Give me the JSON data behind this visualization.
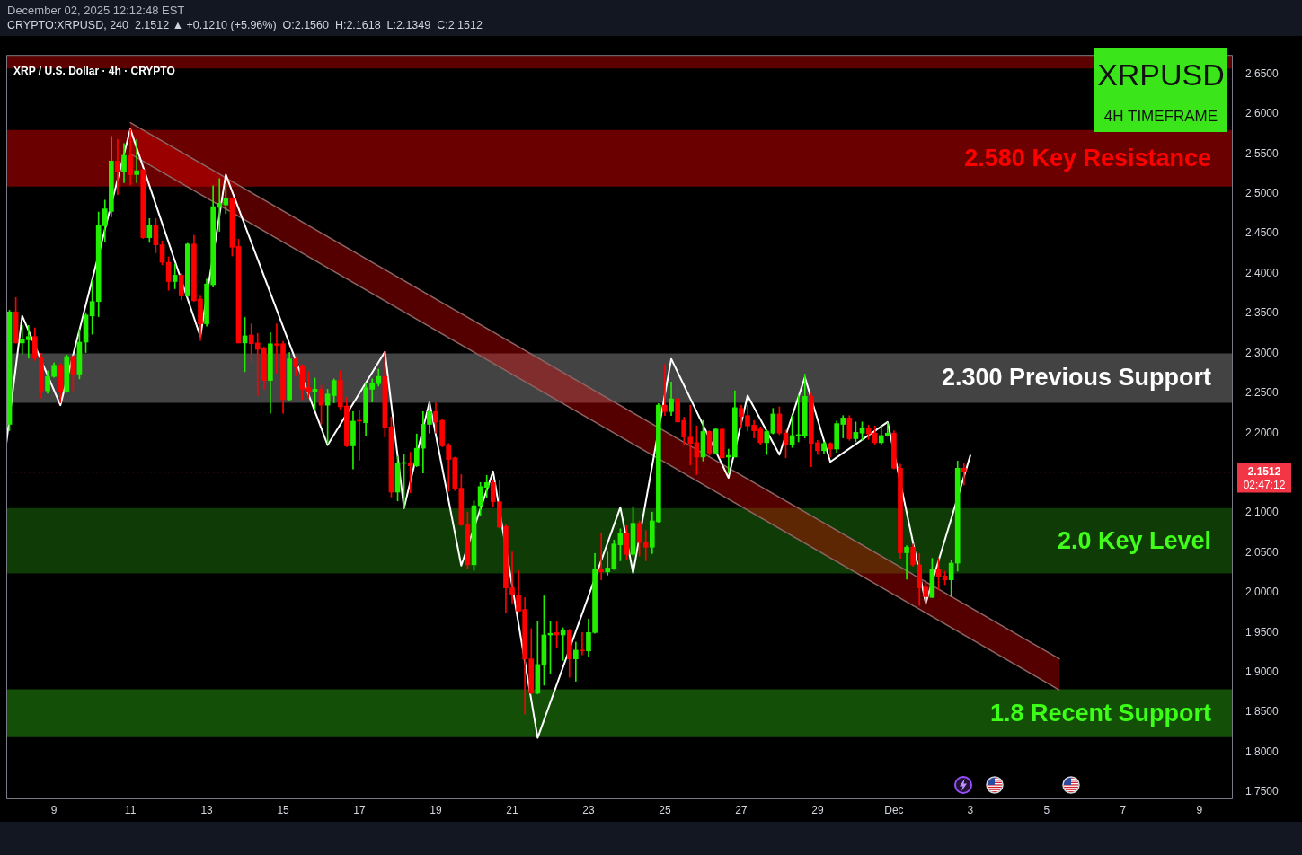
{
  "chart_data": {
    "type": "candlestick",
    "title": "XRP / U.S. Dollar · 4h · CRYPTO",
    "annotations": [
      "December 02, 2025 12:12:48 EST",
      "CRYPTO:XRPUSD, 240  2.1512 ▲ +0.1210 (+5.96%)  O:2.1560  H:2.1618  L:2.1349  C:2.1512",
      "XRPUSD",
      "4H TIMEFRAME",
      "02:47:12"
    ],
    "x": [
      "2025-11-07T20:00",
      "2025-11-08T00:00",
      "2025-11-08T04:00",
      "2025-11-08T08:00",
      "2025-11-08T12:00",
      "2025-11-08T16:00",
      "2025-11-08T20:00",
      "2025-11-09T00:00",
      "2025-11-09T04:00",
      "2025-11-09T08:00",
      "2025-11-09T12:00",
      "2025-11-09T16:00",
      "2025-11-09T20:00",
      "2025-11-10T00:00",
      "2025-11-10T04:00",
      "2025-11-10T08:00",
      "2025-11-10T12:00",
      "2025-11-10T16:00",
      "2025-11-10T20:00",
      "2025-11-11T00:00",
      "2025-11-11T04:00",
      "2025-11-11T08:00",
      "2025-11-11T12:00",
      "2025-11-11T16:00",
      "2025-11-11T20:00",
      "2025-11-12T00:00",
      "2025-11-12T04:00",
      "2025-11-12T08:00",
      "2025-11-12T12:00",
      "2025-11-12T16:00",
      "2025-11-12T20:00",
      "2025-11-13T00:00",
      "2025-11-13T04:00",
      "2025-11-13T08:00",
      "2025-11-13T12:00",
      "2025-11-13T16:00",
      "2025-11-13T20:00",
      "2025-11-14T00:00",
      "2025-11-14T04:00",
      "2025-11-14T08:00",
      "2025-11-14T12:00",
      "2025-11-14T16:00",
      "2025-11-14T20:00",
      "2025-11-15T00:00",
      "2025-11-15T04:00",
      "2025-11-15T08:00",
      "2025-11-15T12:00",
      "2025-11-15T16:00",
      "2025-11-15T20:00",
      "2025-11-16T00:00",
      "2025-11-16T04:00",
      "2025-11-16T08:00",
      "2025-11-16T12:00",
      "2025-11-16T16:00",
      "2025-11-16T20:00",
      "2025-11-17T00:00",
      "2025-11-17T04:00",
      "2025-11-17T08:00",
      "2025-11-17T12:00",
      "2025-11-17T16:00",
      "2025-11-17T20:00",
      "2025-11-18T00:00",
      "2025-11-18T04:00",
      "2025-11-18T08:00",
      "2025-11-18T12:00",
      "2025-11-18T16:00",
      "2025-11-18T20:00",
      "2025-11-19T00:00",
      "2025-11-19T04:00",
      "2025-11-19T08:00",
      "2025-11-19T12:00",
      "2025-11-19T16:00",
      "2025-11-19T20:00",
      "2025-11-20T00:00",
      "2025-11-20T04:00",
      "2025-11-20T08:00",
      "2025-11-20T12:00",
      "2025-11-20T16:00",
      "2025-11-20T20:00",
      "2025-11-21T00:00",
      "2025-11-21T04:00",
      "2025-11-21T08:00",
      "2025-11-21T12:00",
      "2025-11-21T16:00",
      "2025-11-21T20:00",
      "2025-11-22T00:00",
      "2025-11-22T04:00",
      "2025-11-22T08:00",
      "2025-11-22T12:00",
      "2025-11-22T16:00",
      "2025-11-22T20:00",
      "2025-11-23T00:00",
      "2025-11-23T04:00",
      "2025-11-23T08:00",
      "2025-11-23T12:00",
      "2025-11-23T16:00",
      "2025-11-23T20:00",
      "2025-11-24T00:00",
      "2025-11-24T04:00",
      "2025-11-24T08:00",
      "2025-11-24T12:00",
      "2025-11-24T16:00",
      "2025-11-24T20:00",
      "2025-11-25T00:00",
      "2025-11-25T04:00",
      "2025-11-25T08:00",
      "2025-11-25T12:00",
      "2025-11-25T16:00",
      "2025-11-25T20:00",
      "2025-11-26T00:00",
      "2025-11-26T04:00",
      "2025-11-26T08:00",
      "2025-11-26T12:00",
      "2025-11-26T16:00",
      "2025-11-26T20:00",
      "2025-11-27T00:00",
      "2025-11-27T04:00",
      "2025-11-27T08:00",
      "2025-11-27T12:00",
      "2025-11-27T16:00",
      "2025-11-27T20:00",
      "2025-11-28T00:00",
      "2025-11-28T04:00",
      "2025-11-28T08:00",
      "2025-11-28T12:00",
      "2025-11-28T16:00",
      "2025-11-28T20:00",
      "2025-11-29T00:00",
      "2025-11-29T04:00",
      "2025-11-29T08:00",
      "2025-11-29T12:00",
      "2025-11-29T16:00",
      "2025-11-29T20:00",
      "2025-11-30T00:00",
      "2025-11-30T04:00",
      "2025-11-30T08:00",
      "2025-11-30T12:00",
      "2025-11-30T16:00",
      "2025-11-30T20:00",
      "2025-12-01T00:00",
      "2025-12-01T04:00",
      "2025-12-01T08:00",
      "2025-12-01T12:00",
      "2025-12-01T16:00",
      "2025-12-01T20:00",
      "2025-12-02T00:00",
      "2025-12-02T04:00",
      "2025-12-02T08:00",
      "2025-12-02T12:00",
      "2025-12-02T16:00",
      "2025-12-02T20:00"
    ],
    "ohlc": [
      [
        2.211,
        2.354,
        2.203,
        2.352
      ],
      [
        2.352,
        2.37,
        2.313,
        2.313
      ],
      [
        2.313,
        2.335,
        2.299,
        2.318
      ],
      [
        2.317,
        2.335,
        2.294,
        2.321
      ],
      [
        2.321,
        2.332,
        2.291,
        2.294
      ],
      [
        2.294,
        2.3,
        2.244,
        2.253
      ],
      [
        2.253,
        2.278,
        2.25,
        2.271
      ],
      [
        2.271,
        2.288,
        2.27,
        2.285
      ],
      [
        2.285,
        2.287,
        2.238,
        2.252
      ],
      [
        2.252,
        2.298,
        2.251,
        2.296
      ],
      [
        2.296,
        2.297,
        2.253,
        2.274
      ],
      [
        2.274,
        2.33,
        2.268,
        2.314
      ],
      [
        2.314,
        2.351,
        2.301,
        2.348
      ],
      [
        2.347,
        2.392,
        2.324,
        2.365
      ],
      [
        2.365,
        2.477,
        2.346,
        2.461
      ],
      [
        2.46,
        2.492,
        2.44,
        2.481
      ],
      [
        2.478,
        2.572,
        2.471,
        2.541
      ],
      [
        2.541,
        2.568,
        2.499,
        2.528
      ],
      [
        2.528,
        2.563,
        2.514,
        2.548
      ],
      [
        2.548,
        2.581,
        2.511,
        2.524
      ],
      [
        2.524,
        2.568,
        2.514,
        2.529
      ],
      [
        2.53,
        2.531,
        2.444,
        2.445
      ],
      [
        2.445,
        2.469,
        2.439,
        2.46
      ],
      [
        2.46,
        2.469,
        2.426,
        2.436
      ],
      [
        2.436,
        2.441,
        2.411,
        2.414
      ],
      [
        2.414,
        2.421,
        2.379,
        2.39
      ],
      [
        2.39,
        2.412,
        2.381,
        2.398
      ],
      [
        2.398,
        2.4,
        2.367,
        2.372
      ],
      [
        2.372,
        2.438,
        2.371,
        2.437
      ],
      [
        2.437,
        2.448,
        2.365,
        2.366
      ],
      [
        2.368,
        2.372,
        2.316,
        2.337
      ],
      [
        2.337,
        2.393,
        2.334,
        2.387
      ],
      [
        2.386,
        2.51,
        2.383,
        2.484
      ],
      [
        2.483,
        2.519,
        2.453,
        2.488
      ],
      [
        2.486,
        2.512,
        2.475,
        2.494
      ],
      [
        2.494,
        2.495,
        2.422,
        2.433
      ],
      [
        2.434,
        2.443,
        2.313,
        2.313
      ],
      [
        2.313,
        2.345,
        2.277,
        2.322
      ],
      [
        2.323,
        2.337,
        2.29,
        2.312
      ],
      [
        2.313,
        2.325,
        2.247,
        2.305
      ],
      [
        2.306,
        2.308,
        2.255,
        2.266
      ],
      [
        2.266,
        2.326,
        2.225,
        2.312
      ],
      [
        2.312,
        2.337,
        2.275,
        2.31
      ],
      [
        2.312,
        2.315,
        2.225,
        2.242
      ],
      [
        2.242,
        2.301,
        2.241,
        2.293
      ],
      [
        2.293,
        2.294,
        2.272,
        2.283
      ],
      [
        2.284,
        2.286,
        2.242,
        2.255
      ],
      [
        2.257,
        2.277,
        2.244,
        2.252
      ],
      [
        2.252,
        2.269,
        2.229,
        2.255
      ],
      [
        2.255,
        2.26,
        2.211,
        2.235
      ],
      [
        2.235,
        2.255,
        2.187,
        2.249
      ],
      [
        2.247,
        2.268,
        2.238,
        2.266
      ],
      [
        2.266,
        2.278,
        2.23,
        2.233
      ],
      [
        2.234,
        2.245,
        2.183,
        2.184
      ],
      [
        2.184,
        2.227,
        2.155,
        2.215
      ],
      [
        2.216,
        2.229,
        2.166,
        2.215
      ],
      [
        2.213,
        2.262,
        2.197,
        2.257
      ],
      [
        2.255,
        2.268,
        2.239,
        2.263
      ],
      [
        2.262,
        2.28,
        2.259,
        2.271
      ],
      [
        2.271,
        2.302,
        2.195,
        2.207
      ],
      [
        2.208,
        2.22,
        2.12,
        2.126
      ],
      [
        2.126,
        2.171,
        2.115,
        2.162
      ],
      [
        2.162,
        2.174,
        2.106,
        2.163
      ],
      [
        2.162,
        2.176,
        2.125,
        2.159
      ],
      [
        2.159,
        2.199,
        2.158,
        2.181
      ],
      [
        2.181,
        2.227,
        2.15,
        2.211
      ],
      [
        2.211,
        2.239,
        2.2,
        2.227
      ],
      [
        2.227,
        2.238,
        2.2,
        2.214
      ],
      [
        2.216,
        2.218,
        2.183,
        2.184
      ],
      [
        2.185,
        2.187,
        2.127,
        2.167
      ],
      [
        2.169,
        2.17,
        2.128,
        2.13
      ],
      [
        2.131,
        2.148,
        2.084,
        2.085
      ],
      [
        2.085,
        2.101,
        2.03,
        2.035
      ],
      [
        2.035,
        2.115,
        2.028,
        2.109
      ],
      [
        2.109,
        2.138,
        2.096,
        2.133
      ],
      [
        2.132,
        2.147,
        2.119,
        2.138
      ],
      [
        2.138,
        2.141,
        2.107,
        2.114
      ],
      [
        2.114,
        2.141,
        2.081,
        2.082
      ],
      [
        2.083,
        2.085,
        1.975,
        2.006
      ],
      [
        2.006,
        2.051,
        1.987,
        1.998
      ],
      [
        1.997,
        2.028,
        1.976,
        1.977
      ],
      [
        1.979,
        1.994,
        1.848,
        1.917
      ],
      [
        1.917,
        1.955,
        1.873,
        1.874
      ],
      [
        1.874,
        1.964,
        1.873,
        1.91
      ],
      [
        1.909,
        1.996,
        1.884,
        1.947
      ],
      [
        1.947,
        1.964,
        1.899,
        1.949
      ],
      [
        1.95,
        1.964,
        1.931,
        1.947
      ],
      [
        1.947,
        1.956,
        1.915,
        1.953
      ],
      [
        1.953,
        1.954,
        1.894,
        1.917
      ],
      [
        1.917,
        1.938,
        1.889,
        1.928
      ],
      [
        1.928,
        1.95,
        1.922,
        1.927
      ],
      [
        1.927,
        1.967,
        1.92,
        1.95
      ],
      [
        1.95,
        2.049,
        1.949,
        2.03
      ],
      [
        2.03,
        2.074,
        2.016,
        2.026
      ],
      [
        2.026,
        2.051,
        2.022,
        2.031
      ],
      [
        2.03,
        2.066,
        2.029,
        2.061
      ],
      [
        2.06,
        2.08,
        2.04,
        2.075
      ],
      [
        2.074,
        2.084,
        2.042,
        2.048
      ],
      [
        2.048,
        2.108,
        2.046,
        2.087
      ],
      [
        2.087,
        2.09,
        2.046,
        2.063
      ],
      [
        2.063,
        2.078,
        2.04,
        2.057
      ],
      [
        2.057,
        2.101,
        2.049,
        2.09
      ],
      [
        2.089,
        2.237,
        2.088,
        2.235
      ],
      [
        2.235,
        2.286,
        2.222,
        2.227
      ],
      [
        2.227,
        2.264,
        2.222,
        2.243
      ],
      [
        2.243,
        2.257,
        2.214,
        2.214
      ],
      [
        2.216,
        2.22,
        2.185,
        2.195
      ],
      [
        2.195,
        2.235,
        2.16,
        2.187
      ],
      [
        2.188,
        2.209,
        2.148,
        2.17
      ],
      [
        2.17,
        2.216,
        2.165,
        2.202
      ],
      [
        2.202,
        2.203,
        2.172,
        2.175
      ],
      [
        2.175,
        2.206,
        2.174,
        2.205
      ],
      [
        2.205,
        2.206,
        2.169,
        2.169
      ],
      [
        2.17,
        2.18,
        2.15,
        2.172
      ],
      [
        2.17,
        2.253,
        2.17,
        2.232
      ],
      [
        2.231,
        2.235,
        2.207,
        2.221
      ],
      [
        2.222,
        2.235,
        2.203,
        2.209
      ],
      [
        2.21,
        2.216,
        2.194,
        2.203
      ],
      [
        2.205,
        2.208,
        2.185,
        2.188
      ],
      [
        2.188,
        2.204,
        2.173,
        2.202
      ],
      [
        2.2,
        2.231,
        2.199,
        2.224
      ],
      [
        2.224,
        2.233,
        2.198,
        2.2
      ],
      [
        2.2,
        2.204,
        2.169,
        2.185
      ],
      [
        2.185,
        2.222,
        2.182,
        2.197
      ],
      [
        2.197,
        2.247,
        2.189,
        2.198
      ],
      [
        2.196,
        2.274,
        2.194,
        2.246
      ],
      [
        2.246,
        2.25,
        2.158,
        2.187
      ],
      [
        2.188,
        2.191,
        2.173,
        2.178
      ],
      [
        2.178,
        2.189,
        2.174,
        2.187
      ],
      [
        2.187,
        2.188,
        2.17,
        2.18
      ],
      [
        2.18,
        2.215,
        2.176,
        2.212
      ],
      [
        2.211,
        2.222,
        2.194,
        2.219
      ],
      [
        2.219,
        2.222,
        2.191,
        2.193
      ],
      [
        2.193,
        2.214,
        2.189,
        2.201
      ],
      [
        2.2,
        2.214,
        2.191,
        2.206
      ],
      [
        2.206,
        2.21,
        2.192,
        2.199
      ],
      [
        2.2,
        2.209,
        2.185,
        2.188
      ],
      [
        2.188,
        2.209,
        2.186,
        2.197
      ],
      [
        2.197,
        2.213,
        2.196,
        2.2
      ],
      [
        2.2,
        2.203,
        2.155,
        2.156
      ],
      [
        2.156,
        2.161,
        2.043,
        2.05
      ],
      [
        2.05,
        2.059,
        2.017,
        2.057
      ],
      [
        2.057,
        2.061,
        2.033,
        2.035
      ],
      [
        2.035,
        2.049,
        1.984,
        2.006
      ],
      [
        2.007,
        2.013,
        1.987,
        1.995
      ],
      [
        1.994,
        2.043,
        1.994,
        2.03
      ],
      [
        2.03,
        2.043,
        2.004,
        2.02
      ],
      [
        2.021,
        2.027,
        2.01,
        2.016
      ],
      [
        2.016,
        2.041,
        1.995,
        2.037
      ],
      [
        2.037,
        2.165,
        2.027,
        2.156
      ],
      [
        2.156,
        2.1618,
        2.1349,
        2.1512
      ]
    ],
    "colors": [
      "#22ee00",
      "#ff0000",
      "#22ee00",
      "#22ee00",
      "#ff0000",
      "#ff0000",
      "#22ee00",
      "#22ee00",
      "#ff0000",
      "#22ee00",
      "#ff0000",
      "#22ee00",
      "#22ee00",
      "#22ee00",
      "#22ee00",
      "#22ee00",
      "#22ee00",
      "#ff0000",
      "#22ee00",
      "#ff0000",
      "#22ee00",
      "#ff0000",
      "#22ee00",
      "#ff0000",
      "#ff0000",
      "#ff0000",
      "#22ee00",
      "#ff0000",
      "#22ee00",
      "#ff0000",
      "#ff0000",
      "#22ee00",
      "#22ee00",
      "#22ee00",
      "#22ee00",
      "#ff0000",
      "#ff0000",
      "#22ee00",
      "#ff0000",
      "#ff0000",
      "#ff0000",
      "#22ee00",
      "#ff0000",
      "#ff0000",
      "#22ee00",
      "#ff0000",
      "#ff0000",
      "#ff0000",
      "#22ee00",
      "#ff0000",
      "#22ee00",
      "#22ee00",
      "#ff0000",
      "#ff0000",
      "#22ee00",
      "#ff0000",
      "#22ee00",
      "#22ee00",
      "#22ee00",
      "#ff0000",
      "#ff0000",
      "#22ee00",
      "#22ee00",
      "#ff0000",
      "#22ee00",
      "#22ee00",
      "#22ee00",
      "#ff0000",
      "#ff0000",
      "#ff0000",
      "#ff0000",
      "#ff0000",
      "#ff0000",
      "#22ee00",
      "#22ee00",
      "#22ee00",
      "#ff0000",
      "#ff0000",
      "#ff0000",
      "#ff0000",
      "#ff0000",
      "#ff0000",
      "#ff0000",
      "#22ee00",
      "#22ee00",
      "#22ee00",
      "#ff0000",
      "#22ee00",
      "#ff0000",
      "#22ee00",
      "#ff0000",
      "#22ee00",
      "#22ee00",
      "#ff0000",
      "#22ee00",
      "#22ee00",
      "#22ee00",
      "#ff0000",
      "#22ee00",
      "#ff0000",
      "#ff0000",
      "#22ee00",
      "#22ee00",
      "#ff0000",
      "#22ee00",
      "#ff0000",
      "#ff0000",
      "#ff0000",
      "#ff0000",
      "#22ee00",
      "#ff0000",
      "#22ee00",
      "#ff0000",
      "#22ee00",
      "#22ee00",
      "#ff0000",
      "#ff0000",
      "#ff0000",
      "#ff0000",
      "#22ee00",
      "#22ee00",
      "#ff0000",
      "#ff0000",
      "#22ee00",
      "#22ee00",
      "#22ee00",
      "#ff0000",
      "#ff0000",
      "#22ee00",
      "#ff0000",
      "#22ee00",
      "#22ee00",
      "#ff0000",
      "#22ee00",
      "#22ee00",
      "#ff0000",
      "#ff0000",
      "#22ee00",
      "#22ee00",
      "#ff0000",
      "#ff0000",
      "#22ee00",
      "#ff0000",
      "#ff0000",
      "#ff0000",
      "#22ee00",
      "#ff0000",
      "#ff0000",
      "#22ee00",
      "#22ee00",
      "#ff0000"
    ],
    "series": [
      {
        "type": "line",
        "color": "#ffffff",
        "x": [
          "2025-11-07T18:00",
          "2025-11-08T04:00",
          "2025-11-09T04:00",
          "2025-11-11T00:00",
          "2025-11-12T20:00",
          "2025-11-13T12:00",
          "2025-11-16T04:00",
          "2025-11-17T16:00",
          "2025-11-18T04:00",
          "2025-11-18T20:00",
          "2025-11-19T16:00",
          "2025-11-20T12:00",
          "2025-11-21T16:00",
          "2025-11-23T20:00",
          "2025-11-24T04:00",
          "2025-11-25T04:00",
          "2025-11-26T16:00",
          "2025-11-27T04:00",
          "2025-11-28T00:00",
          "2025-11-28T16:00",
          "2025-11-29T08:00",
          "2025-11-30T20:00",
          "2025-12-01T20:00",
          "2025-12-03T00:00"
        ],
        "values": [
          2.187,
          2.347,
          2.235,
          2.581,
          2.321,
          2.524,
          2.185,
          2.302,
          2.106,
          2.239,
          2.034,
          2.152,
          1.818,
          2.107,
          2.025,
          2.293,
          2.144,
          2.247,
          2.173,
          2.27,
          2.164,
          2.214,
          1.987,
          2.172
        ]
      },
      {
        "type": "line",
        "color": "#8c6464",
        "x": [
          "2025-11-11T00:00",
          "2025-12-05T08:00"
        ],
        "values": [
          2.589,
          1.917
        ],
        "lower": [
          2.55,
          1.878
        ],
        "upper": [
          2.589,
          1.917
        ]
      }
    ],
    "xlim": [
      "2025-11-07T18:00",
      "2025-12-09T21:00"
    ],
    "xticks": [
      {
        "value": "2025-11-09",
        "label": "9"
      },
      {
        "value": "2025-11-11",
        "label": "11"
      },
      {
        "value": "2025-11-13",
        "label": "13"
      },
      {
        "value": "2025-11-15",
        "label": "15"
      },
      {
        "value": "2025-11-17",
        "label": "17"
      },
      {
        "value": "2025-11-19",
        "label": "19"
      },
      {
        "value": "2025-11-21",
        "label": "21"
      },
      {
        "value": "2025-11-23",
        "label": "23"
      },
      {
        "value": "2025-11-25",
        "label": "25"
      },
      {
        "value": "2025-11-27",
        "label": "27"
      },
      {
        "value": "2025-11-29",
        "label": "29"
      },
      {
        "value": "2025-12-01",
        "label": "Dec"
      },
      {
        "value": "2025-12-03",
        "label": "3"
      },
      {
        "value": "2025-12-05",
        "label": "5"
      },
      {
        "value": "2025-12-07",
        "label": "7"
      },
      {
        "value": "2025-12-09",
        "label": "9"
      }
    ],
    "ylim": [
      1.741,
      2.674
    ],
    "yticks": [
      {
        "value": 1.75,
        "label": "1.7500"
      },
      {
        "value": 1.8,
        "label": "1.8000"
      },
      {
        "value": 1.85,
        "label": "1.8500"
      },
      {
        "value": 1.9,
        "label": "1.9000"
      },
      {
        "value": 1.95,
        "label": "1.9500"
      },
      {
        "value": 2.0,
        "label": "2.0000"
      },
      {
        "value": 2.05,
        "label": "2.0500"
      },
      {
        "value": 2.1,
        "label": "2.1000"
      },
      {
        "value": 2.2,
        "label": "2.2000"
      },
      {
        "value": 2.25,
        "label": "2.2500"
      },
      {
        "value": 2.3,
        "label": "2.3000"
      },
      {
        "value": 2.35,
        "label": "2.3500"
      },
      {
        "value": 2.4,
        "label": "2.4000"
      },
      {
        "value": 2.45,
        "label": "2.4500"
      },
      {
        "value": 2.5,
        "label": "2.5000"
      },
      {
        "value": 2.55,
        "label": "2.5500"
      },
      {
        "value": 2.6,
        "label": "2.6000"
      },
      {
        "value": 2.65,
        "label": "2.6500"
      }
    ],
    "bands": [
      {
        "axis": "y",
        "from": 2.657,
        "to": 2.674,
        "color": "#5c0000"
      },
      {
        "axis": "y",
        "from": 2.509,
        "to": 2.58,
        "label": "2.580 Key Resistance",
        "color": "#6b0000"
      },
      {
        "axis": "y",
        "from": 2.238,
        "to": 2.3,
        "label": "2.300 Previous Support",
        "color": "#434343"
      },
      {
        "axis": "y",
        "from": 2.024,
        "to": 2.106,
        "label": "2.0 Key Level",
        "color": "#0f3b06"
      },
      {
        "axis": "y",
        "from": 1.819,
        "to": 1.879,
        "label": "1.8 Recent Support",
        "color": "#134f07"
      }
    ],
    "ref_lines": [
      {
        "axis": "y",
        "value": 2.1512,
        "label": "2.1512",
        "color": "#f23645",
        "line_style": "dotted"
      }
    ]
  }
}
